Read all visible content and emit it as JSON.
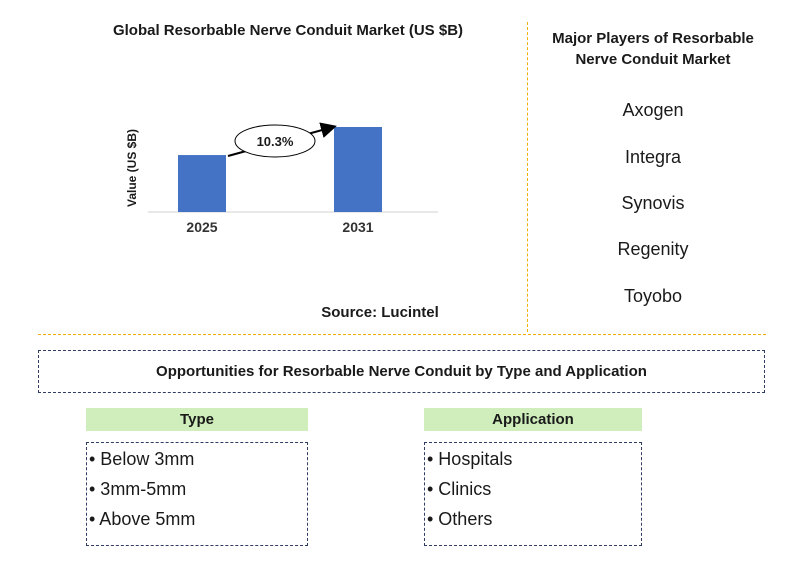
{
  "chart_data": {
    "type": "bar",
    "title": "Global Resorbable Nerve Conduit Market (US $B)",
    "ylabel": "Value (US $B)",
    "categories": [
      "2025",
      "2031"
    ],
    "values": [
      0.67,
      1.0
    ],
    "annotation": "10.3%",
    "bar_color": "#4472c4",
    "grid": false
  },
  "source": "Source: Lucintel",
  "players": {
    "title": "Major Players of Resorbable Nerve Conduit Market",
    "items": [
      "Axogen",
      "Integra",
      "Synovis",
      "Regenity",
      "Toyobo"
    ]
  },
  "opportunities": {
    "title": "Opportunities for Resorbable Nerve Conduit by Type and Application",
    "type": {
      "heading": "Type",
      "items": [
        "• Below 3mm",
        "• 3mm-5mm",
        "• Above 5mm"
      ]
    },
    "application": {
      "heading": "Application",
      "items": [
        "• Hospitals",
        "• Clinics",
        "• Others"
      ]
    }
  },
  "colors": {
    "divider": "#f0b000",
    "header_fill": "#cfeebb",
    "box_border": "#2f3d63"
  }
}
